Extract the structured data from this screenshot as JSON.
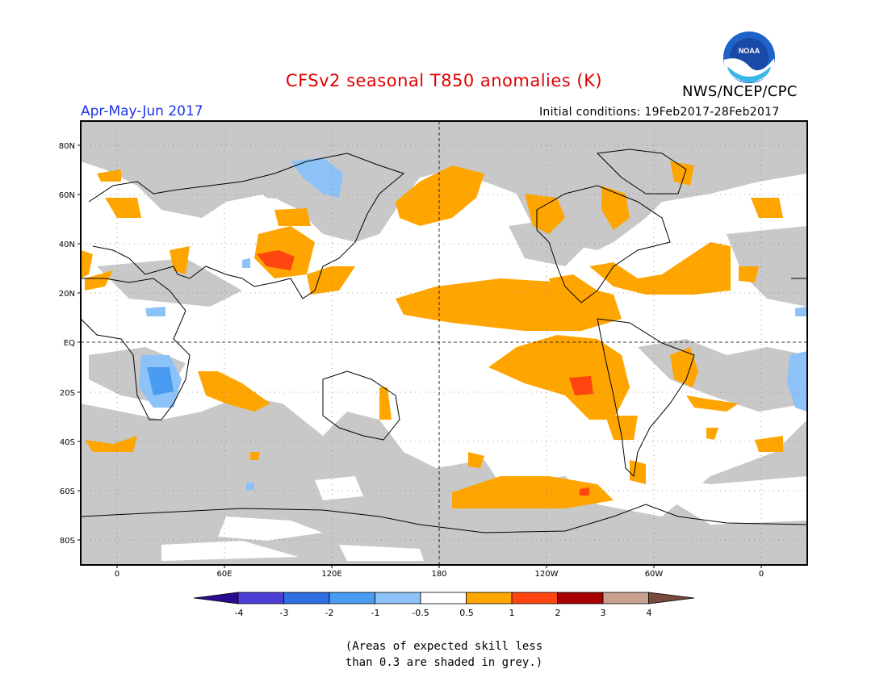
{
  "header": {
    "title": "CFSv2 seasonal T850 anomalies (K)",
    "agency": "NWS/NCEP/CPC",
    "logo_text": "NOAA",
    "season": "Apr-May-Jun 2017",
    "initial_conditions": "Initial conditions: 19Feb2017-28Feb2017"
  },
  "map": {
    "projection": "cylindrical equidistant, centered on 180",
    "lat_labels": [
      "80N",
      "60N",
      "40N",
      "20N",
      "EQ",
      "20S",
      "40S",
      "60S",
      "80S"
    ],
    "lon_labels": [
      "0",
      "60E",
      "120E",
      "180",
      "120W",
      "60W",
      "0"
    ],
    "grid": "dotted every 20 degrees",
    "skill_mask_color": "#c8c8c8",
    "colors": {
      "neg4": "#2a0a8e",
      "neg3": "#4b3fd6",
      "neg2": "#2f6fe0",
      "neg1": "#4a9cf2",
      "neg05": "#8cc2f7",
      "pos05": "#ffa500",
      "pos1": "#ff4510",
      "pos2": "#e8200c",
      "pos3": "#a80000",
      "pos4": "#c8a090",
      "pos5": "#7a4a3a"
    }
  },
  "colorbar": {
    "labels": [
      "-4",
      "-3",
      "-2",
      "-1",
      "-0.5",
      "0.5",
      "1",
      "2",
      "3",
      "4"
    ]
  },
  "footnote": {
    "line1": "(Areas of expected skill less",
    "line2": "than 0.3 are shaded in grey.)"
  }
}
